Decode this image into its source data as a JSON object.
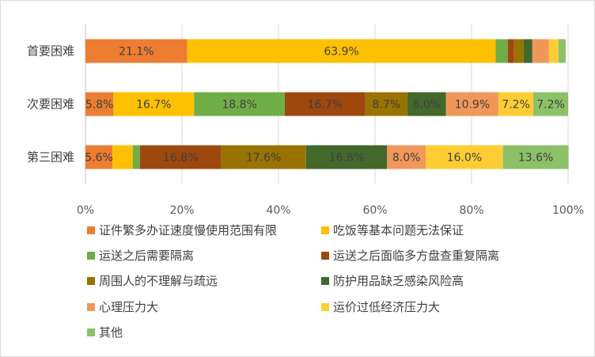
{
  "chart_data": {
    "type": "bar",
    "orientation": "horizontal",
    "stacked": "percent",
    "categories": [
      "首要困难",
      "次要困难",
      "第三困难"
    ],
    "x_ticks": [
      "0%",
      "20%",
      "40%",
      "60%",
      "80%",
      "100%"
    ],
    "xlim": [
      0,
      100
    ],
    "grid": true,
    "legend_position": "bottom",
    "series": [
      {
        "name": "证件繁多办证速度慢使用范围有限",
        "color": "#ed7d31",
        "values": [
          21.1,
          5.8,
          5.6
        ],
        "labels": [
          "21.1%",
          "5.8%",
          "5.6%"
        ]
      },
      {
        "name": "吃饭等基本问题无法保证",
        "color": "#ffc000",
        "values": [
          63.9,
          16.7,
          4.2
        ],
        "labels": [
          "63.9%",
          "16.7%",
          ""
        ]
      },
      {
        "name": "运送之后需要隔离",
        "color": "#70ad47",
        "values": [
          2.5,
          18.8,
          1.5
        ],
        "labels": [
          "",
          "18.8%",
          ""
        ]
      },
      {
        "name": "运送之后面临多方盘查重复隔离",
        "color": "#9e480e",
        "values": [
          1.3,
          16.7,
          16.8
        ],
        "labels": [
          "",
          "16.7%",
          "16.8%"
        ]
      },
      {
        "name": "周围人的不理解与疏远",
        "color": "#997300",
        "values": [
          2.0,
          8.7,
          17.6
        ],
        "labels": [
          "",
          "8.7%",
          "17.6%"
        ]
      },
      {
        "name": "防护用品缺乏感染风险高",
        "color": "#43682b",
        "values": [
          1.8,
          8.0,
          16.8
        ],
        "labels": [
          "",
          "8.0%",
          "16.8%"
        ]
      },
      {
        "name": "心理压力大",
        "color": "#f1975a",
        "values": [
          3.4,
          10.9,
          8.0
        ],
        "labels": [
          "",
          "10.9%",
          "8.0%"
        ]
      },
      {
        "name": "运价过低经济压力大",
        "color": "#ffcd33",
        "values": [
          2.0,
          7.2,
          16.0
        ],
        "labels": [
          "",
          "7.2%",
          "16.0%"
        ]
      },
      {
        "name": "其他",
        "color": "#8cc168",
        "values": [
          1.5,
          7.2,
          13.6
        ],
        "labels": [
          "",
          "7.2%",
          "13.6%"
        ]
      }
    ]
  }
}
